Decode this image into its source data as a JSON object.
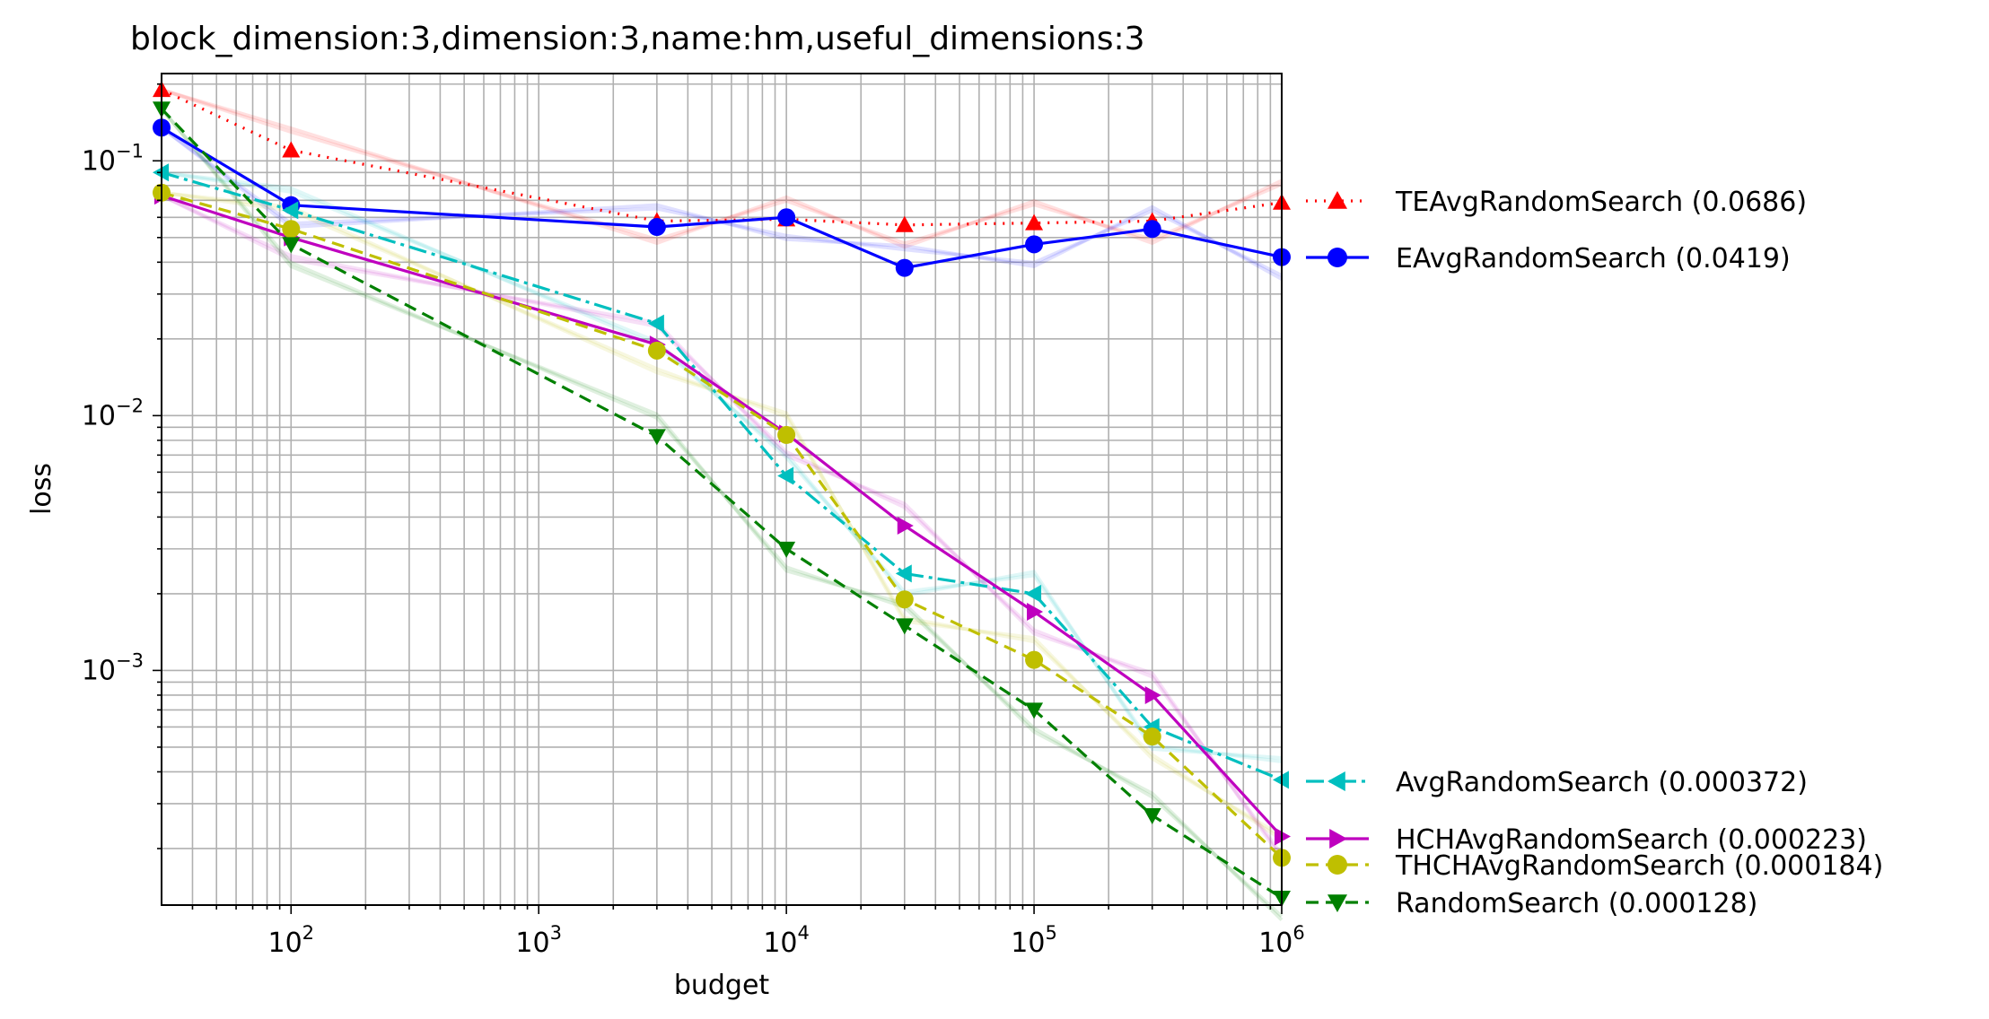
{
  "chart_data": {
    "type": "line",
    "title": "block_dimension:3,dimension:3,name:hm,useful_dimensions:3",
    "xlabel": "budget",
    "ylabel": "loss",
    "xscale": "log",
    "yscale": "log",
    "xlim": [
      30,
      1000000
    ],
    "ylim": [
      0.00012,
      0.22
    ],
    "grid": true,
    "legend_position": "right",
    "x_ticks": [
      {
        "value": 100,
        "base": "10",
        "exp": "2"
      },
      {
        "value": 1000,
        "base": "10",
        "exp": "3"
      },
      {
        "value": 10000,
        "base": "10",
        "exp": "4"
      },
      {
        "value": 100000,
        "base": "10",
        "exp": "5"
      },
      {
        "value": 1000000,
        "base": "10",
        "exp": "6"
      }
    ],
    "y_ticks": [
      {
        "value": 0.001,
        "base": "10",
        "exp": "−3"
      },
      {
        "value": 0.01,
        "base": "10",
        "exp": "−2"
      },
      {
        "value": 0.1,
        "base": "10",
        "exp": "−1"
      }
    ],
    "x": [
      30,
      100,
      3000,
      10000,
      30000,
      100000,
      300000,
      1000000
    ],
    "series": [
      {
        "name": "TEAvgRandomSearch (0.0686)",
        "color": "#ff0000",
        "dash": "2,8",
        "marker": "triangle-up",
        "values": [
          0.19,
          0.11,
          0.058,
          0.059,
          0.056,
          0.057,
          0.058,
          0.0686
        ]
      },
      {
        "name": "EAvgRandomSearch (0.0419)",
        "color": "#0000ff",
        "dash": "",
        "marker": "circle",
        "values": [
          0.135,
          0.067,
          0.055,
          0.06,
          0.038,
          0.047,
          0.054,
          0.0419
        ]
      },
      {
        "name": "AvgRandomSearch (0.000372)",
        "color": "#00bfbf",
        "dash": "20,6,4,6",
        "marker": "triangle-left",
        "values": [
          0.09,
          0.064,
          0.023,
          0.0058,
          0.0024,
          0.002,
          0.0006,
          0.000372
        ]
      },
      {
        "name": "HCHAvgRandomSearch (0.000223)",
        "color": "#bf00bf",
        "dash": "",
        "marker": "triangle-right",
        "values": [
          0.073,
          0.05,
          0.019,
          0.0085,
          0.0037,
          0.0017,
          0.0008,
          0.000223
        ]
      },
      {
        "name": "THCHAvgRandomSearch (0.000184)",
        "color": "#bfbf00",
        "dash": "14,8",
        "marker": "circle",
        "values": [
          0.075,
          0.054,
          0.018,
          0.0084,
          0.0019,
          0.0011,
          0.00055,
          0.000184
        ]
      },
      {
        "name": "RandomSearch (0.000128)",
        "color": "#008000",
        "dash": "14,8",
        "marker": "triangle-down",
        "values": [
          0.16,
          0.047,
          0.0083,
          0.003,
          0.0015,
          0.0007,
          0.00027,
          0.000128
        ]
      }
    ]
  }
}
